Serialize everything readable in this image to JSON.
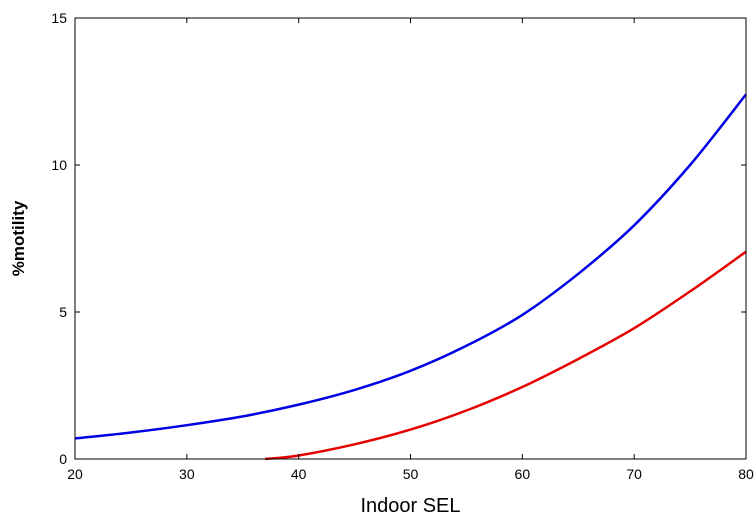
{
  "chart_data": {
    "type": "line",
    "title": "",
    "xlabel": "Indoor SEL",
    "ylabel": "%motility",
    "xlim": [
      20,
      80
    ],
    "ylim": [
      0,
      15
    ],
    "xticks": [
      20,
      30,
      40,
      50,
      60,
      70,
      80
    ],
    "yticks": [
      0,
      5,
      10,
      15
    ],
    "grid": false,
    "legend": "none",
    "series": [
      {
        "color": "#0000e6",
        "x": [
          20,
          25,
          30,
          35,
          40,
          45,
          50,
          55,
          60,
          65,
          70,
          75,
          80
        ],
        "y": [
          0.7,
          0.9,
          1.15,
          1.45,
          1.85,
          2.35,
          3.0,
          3.85,
          4.9,
          6.3,
          7.95,
          10.0,
          12.4
        ]
      },
      {
        "color": "#e60000",
        "x": [
          37,
          40,
          45,
          50,
          55,
          60,
          65,
          70,
          75,
          80
        ],
        "y": [
          0.0,
          0.12,
          0.5,
          1.0,
          1.65,
          2.45,
          3.4,
          4.45,
          5.7,
          7.05
        ]
      }
    ]
  }
}
